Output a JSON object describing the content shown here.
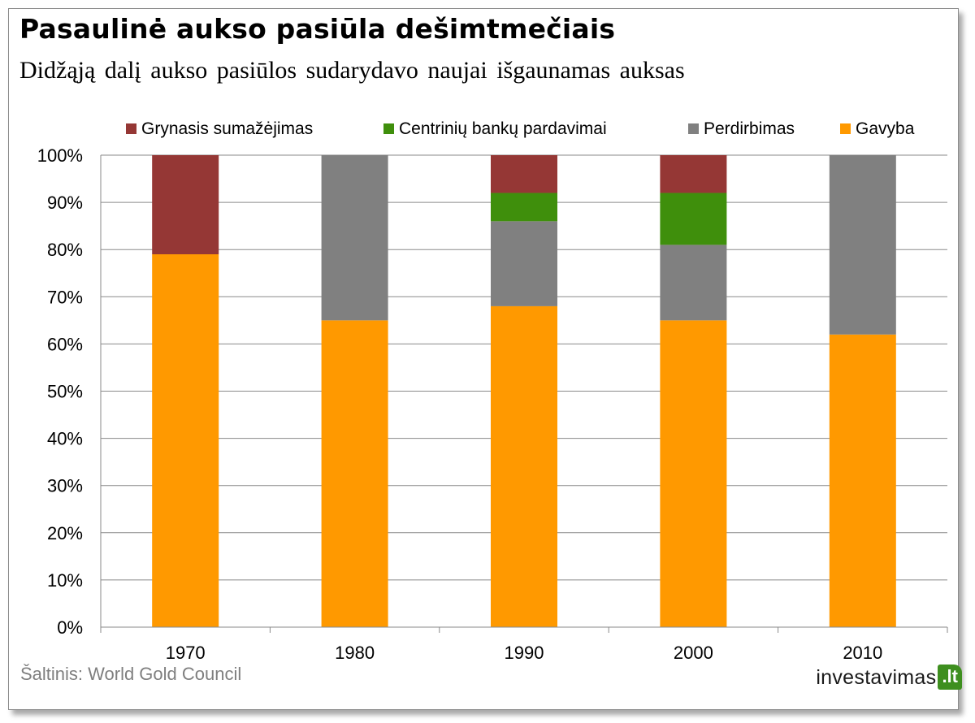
{
  "title": "Pasaulinė aukso pasiūla dešimtmečiais",
  "subtitle": "Didžąją dalį aukso pasiūlos sudarydavo naujai išgaunamas auksas",
  "source": "Šaltinis: World Gold Council",
  "logo": {
    "word": "investavimas",
    "tld": ".lt",
    "accent_color": "#3e8f1f"
  },
  "chart_data": {
    "type": "bar",
    "stacked": true,
    "percent_stacked": true,
    "categories": [
      "1970",
      "1980",
      "1990",
      "2000",
      "2010"
    ],
    "series": [
      {
        "name": "Gavyba",
        "color": "#ff9900",
        "values": [
          79,
          65,
          68,
          65,
          62
        ]
      },
      {
        "name": "Perdirbimas",
        "color": "#808080",
        "values": [
          0,
          35,
          18,
          16,
          38
        ]
      },
      {
        "name": "Centrinių bankų pardavimai",
        "color": "#3f8f0c",
        "values": [
          0,
          0,
          6,
          11,
          0
        ]
      },
      {
        "name": "Grynasis sumažėjimas",
        "color": "#953735",
        "values": [
          21,
          0,
          8,
          8,
          0
        ]
      }
    ],
    "legend_order": [
      "Grynasis sumažėjimas",
      "Centrinių bankų pardavimai",
      "Perdirbimas",
      "Gavyba"
    ],
    "legend_position": "top",
    "ylim": [
      0,
      100
    ],
    "yticks": [
      0,
      10,
      20,
      30,
      40,
      50,
      60,
      70,
      80,
      90,
      100
    ],
    "ytick_labels": [
      "0%",
      "10%",
      "20%",
      "30%",
      "40%",
      "50%",
      "60%",
      "70%",
      "80%",
      "90%",
      "100%"
    ],
    "xlabel": "",
    "ylabel": "",
    "grid": "horizontal"
  }
}
